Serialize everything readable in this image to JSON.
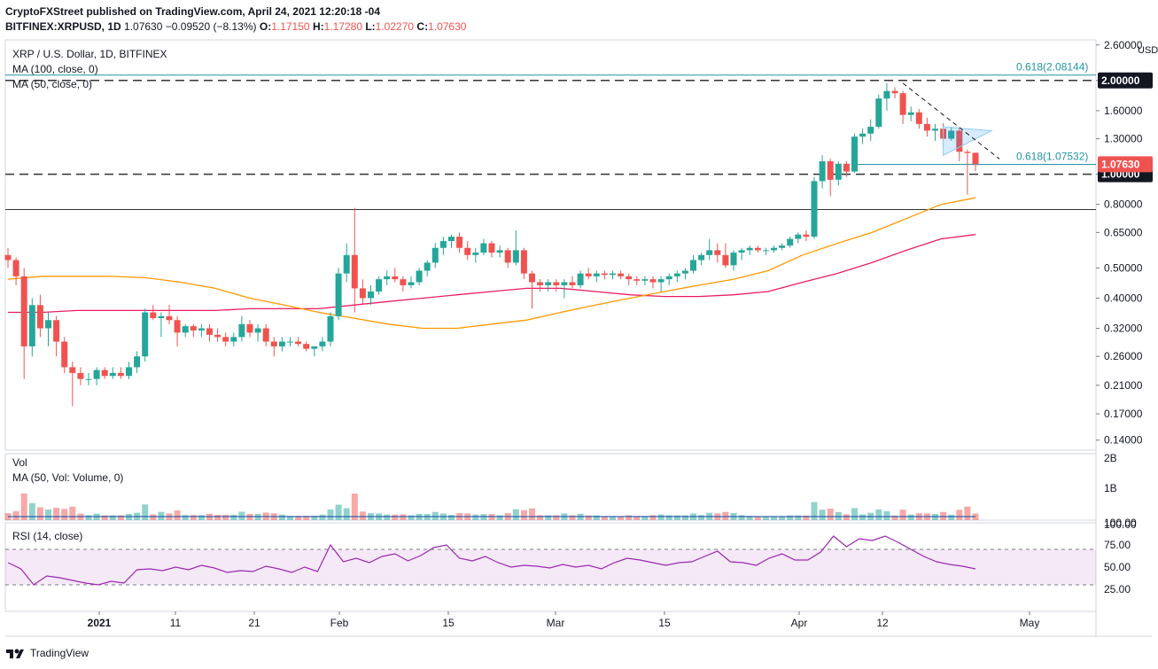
{
  "header": {
    "line1": "CryptoFXStreet published on TradingView.com, April 24, 2021 12:20:18 -04",
    "symbol": "BITFINEX:XRPUSD, 1D",
    "last": "1.07630",
    "change": "−0.09520 (−8.13%)",
    "ohlc": {
      "O": "1.17150",
      "H": "1.17280",
      "L": "1.02270",
      "C": "1.07630"
    }
  },
  "legend": {
    "title": "XRP / U.S. Dollar, 1D, BITFINEX",
    "ma100": "MA (100, close, 0)",
    "ma50": "MA (50, close, 0)",
    "vol": "Vol",
    "volma": "MA (50, Vol: Volume, 0)",
    "rsi": "RSI (14, close)"
  },
  "footer": {
    "brand": "TradingView"
  },
  "colors": {
    "up": "#26a69a",
    "down": "#ef5350",
    "ma50": "#ff9800",
    "ma100": "#e91e63",
    "rsi": "#9c27b0",
    "fib": "#2196a3"
  },
  "chart_data": {
    "type": "candlestick",
    "y_scale": "log",
    "ylim": [
      0.13,
      2.7
    ],
    "y_unit": "USD",
    "y_ticks": [
      "2.60000",
      "2.00000",
      "1.60000",
      "1.30000",
      "1.00000",
      "0.80000",
      "0.65000",
      "0.50000",
      "0.40000",
      "0.32000",
      "0.26000",
      "0.21000",
      "0.17000",
      "0.14000"
    ],
    "x_ticks": [
      "2021",
      "11",
      "21",
      "Feb",
      "15",
      "Mar",
      "15",
      "Apr",
      "12",
      "May"
    ],
    "annotations": {
      "fib_top": "0.618(2.08144)",
      "fib_mid": "0.618(1.07532)",
      "last_price": "1.07630",
      "level_2": "2.00000",
      "level_1": "1.00000"
    },
    "levels": {
      "resistance": 2.0,
      "support": 1.0,
      "fib_top": 2.08144,
      "fib_mid": 1.07532,
      "horizontal": 0.77
    },
    "candles": [
      [
        0.55,
        0.58,
        0.5,
        0.53
      ],
      [
        0.53,
        0.54,
        0.44,
        0.47
      ],
      [
        0.47,
        0.5,
        0.22,
        0.28
      ],
      [
        0.28,
        0.4,
        0.26,
        0.38
      ],
      [
        0.38,
        0.41,
        0.3,
        0.32
      ],
      [
        0.32,
        0.36,
        0.28,
        0.34
      ],
      [
        0.34,
        0.35,
        0.26,
        0.29
      ],
      [
        0.29,
        0.3,
        0.23,
        0.24
      ],
      [
        0.24,
        0.25,
        0.18,
        0.23
      ],
      [
        0.23,
        0.24,
        0.21,
        0.22
      ],
      [
        0.22,
        0.23,
        0.21,
        0.22
      ],
      [
        0.22,
        0.24,
        0.21,
        0.235
      ],
      [
        0.235,
        0.24,
        0.22,
        0.225
      ],
      [
        0.225,
        0.24,
        0.22,
        0.23
      ],
      [
        0.23,
        0.24,
        0.22,
        0.225
      ],
      [
        0.225,
        0.25,
        0.22,
        0.24
      ],
      [
        0.24,
        0.27,
        0.23,
        0.26
      ],
      [
        0.26,
        0.37,
        0.25,
        0.36
      ],
      [
        0.36,
        0.38,
        0.34,
        0.345
      ],
      [
        0.345,
        0.36,
        0.3,
        0.35
      ],
      [
        0.35,
        0.38,
        0.33,
        0.34
      ],
      [
        0.34,
        0.35,
        0.28,
        0.31
      ],
      [
        0.31,
        0.33,
        0.3,
        0.325
      ],
      [
        0.325,
        0.33,
        0.3,
        0.315
      ],
      [
        0.315,
        0.33,
        0.3,
        0.32
      ],
      [
        0.32,
        0.33,
        0.29,
        0.305
      ],
      [
        0.305,
        0.32,
        0.29,
        0.3
      ],
      [
        0.3,
        0.31,
        0.28,
        0.29
      ],
      [
        0.29,
        0.31,
        0.28,
        0.3
      ],
      [
        0.3,
        0.35,
        0.29,
        0.33
      ],
      [
        0.33,
        0.34,
        0.3,
        0.31
      ],
      [
        0.31,
        0.33,
        0.29,
        0.32
      ],
      [
        0.32,
        0.33,
        0.28,
        0.29
      ],
      [
        0.29,
        0.3,
        0.26,
        0.28
      ],
      [
        0.28,
        0.3,
        0.27,
        0.29
      ],
      [
        0.29,
        0.3,
        0.28,
        0.29
      ],
      [
        0.29,
        0.3,
        0.28,
        0.285
      ],
      [
        0.285,
        0.29,
        0.27,
        0.275
      ],
      [
        0.275,
        0.28,
        0.26,
        0.28
      ],
      [
        0.28,
        0.3,
        0.27,
        0.29
      ],
      [
        0.29,
        0.36,
        0.28,
        0.35
      ],
      [
        0.35,
        0.5,
        0.34,
        0.48
      ],
      [
        0.48,
        0.6,
        0.45,
        0.55
      ],
      [
        0.55,
        0.78,
        0.36,
        0.43
      ],
      [
        0.43,
        0.46,
        0.38,
        0.4
      ],
      [
        0.4,
        0.44,
        0.38,
        0.42
      ],
      [
        0.42,
        0.47,
        0.41,
        0.46
      ],
      [
        0.46,
        0.49,
        0.44,
        0.47
      ],
      [
        0.47,
        0.5,
        0.45,
        0.46
      ],
      [
        0.46,
        0.47,
        0.42,
        0.44
      ],
      [
        0.44,
        0.47,
        0.43,
        0.45
      ],
      [
        0.45,
        0.5,
        0.44,
        0.49
      ],
      [
        0.49,
        0.53,
        0.47,
        0.52
      ],
      [
        0.52,
        0.6,
        0.5,
        0.58
      ],
      [
        0.58,
        0.63,
        0.55,
        0.61
      ],
      [
        0.61,
        0.64,
        0.58,
        0.63
      ],
      [
        0.63,
        0.65,
        0.56,
        0.58
      ],
      [
        0.58,
        0.61,
        0.53,
        0.55
      ],
      [
        0.55,
        0.58,
        0.52,
        0.56
      ],
      [
        0.56,
        0.62,
        0.55,
        0.6
      ],
      [
        0.6,
        0.61,
        0.54,
        0.56
      ],
      [
        0.56,
        0.59,
        0.54,
        0.57
      ],
      [
        0.57,
        0.58,
        0.5,
        0.52
      ],
      [
        0.52,
        0.66,
        0.51,
        0.57
      ],
      [
        0.57,
        0.58,
        0.46,
        0.48
      ],
      [
        0.48,
        0.49,
        0.37,
        0.45
      ],
      [
        0.45,
        0.46,
        0.42,
        0.44
      ],
      [
        0.44,
        0.46,
        0.42,
        0.45
      ],
      [
        0.45,
        0.46,
        0.42,
        0.44
      ],
      [
        0.44,
        0.46,
        0.4,
        0.45
      ],
      [
        0.45,
        0.47,
        0.43,
        0.44
      ],
      [
        0.44,
        0.49,
        0.43,
        0.48
      ],
      [
        0.48,
        0.5,
        0.46,
        0.47
      ],
      [
        0.47,
        0.49,
        0.45,
        0.48
      ],
      [
        0.48,
        0.49,
        0.46,
        0.475
      ],
      [
        0.475,
        0.49,
        0.46,
        0.48
      ],
      [
        0.48,
        0.49,
        0.46,
        0.47
      ],
      [
        0.47,
        0.48,
        0.44,
        0.46
      ],
      [
        0.46,
        0.47,
        0.44,
        0.455
      ],
      [
        0.455,
        0.47,
        0.44,
        0.46
      ],
      [
        0.46,
        0.47,
        0.43,
        0.45
      ],
      [
        0.45,
        0.47,
        0.42,
        0.46
      ],
      [
        0.46,
        0.48,
        0.44,
        0.47
      ],
      [
        0.47,
        0.49,
        0.45,
        0.48
      ],
      [
        0.48,
        0.5,
        0.46,
        0.49
      ],
      [
        0.49,
        0.55,
        0.48,
        0.53
      ],
      [
        0.53,
        0.56,
        0.51,
        0.55
      ],
      [
        0.55,
        0.62,
        0.53,
        0.57
      ],
      [
        0.57,
        0.6,
        0.52,
        0.55
      ],
      [
        0.55,
        0.6,
        0.5,
        0.51
      ],
      [
        0.51,
        0.57,
        0.49,
        0.56
      ],
      [
        0.56,
        0.58,
        0.53,
        0.57
      ],
      [
        0.57,
        0.59,
        0.55,
        0.58
      ],
      [
        0.58,
        0.59,
        0.56,
        0.57
      ],
      [
        0.57,
        0.58,
        0.55,
        0.57
      ],
      [
        0.57,
        0.59,
        0.56,
        0.58
      ],
      [
        0.58,
        0.6,
        0.57,
        0.59
      ],
      [
        0.59,
        0.63,
        0.58,
        0.62
      ],
      [
        0.62,
        0.65,
        0.6,
        0.64
      ],
      [
        0.64,
        0.66,
        0.61,
        0.63
      ],
      [
        0.63,
        0.98,
        0.62,
        0.95
      ],
      [
        0.95,
        1.15,
        0.9,
        1.1
      ],
      [
        1.1,
        1.12,
        0.85,
        0.96
      ],
      [
        0.96,
        1.1,
        0.92,
        1.08
      ],
      [
        1.08,
        1.1,
        0.98,
        1.02
      ],
      [
        1.02,
        1.35,
        1.01,
        1.32
      ],
      [
        1.32,
        1.4,
        1.25,
        1.35
      ],
      [
        1.35,
        1.5,
        1.28,
        1.42
      ],
      [
        1.42,
        1.8,
        1.4,
        1.75
      ],
      [
        1.75,
        1.96,
        1.6,
        1.85
      ],
      [
        1.85,
        1.9,
        1.75,
        1.82
      ],
      [
        1.82,
        1.85,
        1.45,
        1.55
      ],
      [
        1.55,
        1.65,
        1.48,
        1.58
      ],
      [
        1.58,
        1.62,
        1.4,
        1.45
      ],
      [
        1.45,
        1.52,
        1.32,
        1.38
      ],
      [
        1.38,
        1.45,
        1.28,
        1.4
      ],
      [
        1.4,
        1.46,
        1.22,
        1.3
      ],
      [
        1.3,
        1.42,
        1.28,
        1.38
      ],
      [
        1.38,
        1.4,
        1.1,
        1.18
      ],
      [
        1.18,
        1.2,
        0.86,
        1.17
      ],
      [
        1.1715,
        1.1728,
        1.0227,
        1.0763
      ]
    ],
    "ma50": [
      0.46,
      0.47,
      0.47,
      0.47,
      0.465,
      0.45,
      0.43,
      0.4,
      0.38,
      0.36,
      0.345,
      0.33,
      0.32,
      0.32,
      0.33,
      0.34,
      0.36,
      0.38,
      0.4,
      0.42,
      0.44,
      0.46,
      0.49,
      0.55,
      0.6,
      0.65,
      0.72,
      0.8,
      0.84
    ],
    "ma100": [
      0.36,
      0.36,
      0.365,
      0.365,
      0.365,
      0.365,
      0.365,
      0.37,
      0.37,
      0.37,
      0.38,
      0.39,
      0.4,
      0.41,
      0.42,
      0.43,
      0.43,
      0.42,
      0.41,
      0.405,
      0.405,
      0.41,
      0.42,
      0.45,
      0.48,
      0.52,
      0.57,
      0.62,
      0.64
    ],
    "volume": {
      "ticks": [
        "2B",
        "1B",
        "100.00"
      ]
    },
    "rsi": {
      "ticks": [
        "100.00",
        "75.00",
        "50.00",
        "25.00"
      ],
      "upper": 70,
      "lower": 30,
      "values": [
        55,
        48,
        30,
        40,
        38,
        35,
        32,
        30,
        34,
        32,
        47,
        48,
        46,
        50,
        47,
        52,
        49,
        44,
        46,
        45,
        51,
        48,
        44,
        50,
        45,
        75,
        56,
        60,
        55,
        62,
        65,
        57,
        63,
        72,
        75,
        60,
        57,
        62,
        55,
        50,
        52,
        51,
        49,
        53,
        50,
        52,
        48,
        55,
        60,
        58,
        55,
        52,
        55,
        56,
        62,
        68,
        56,
        55,
        52,
        60,
        65,
        58,
        58,
        67,
        85,
        73,
        82,
        80,
        85,
        78,
        70,
        62,
        56,
        53,
        51,
        48
      ]
    }
  }
}
